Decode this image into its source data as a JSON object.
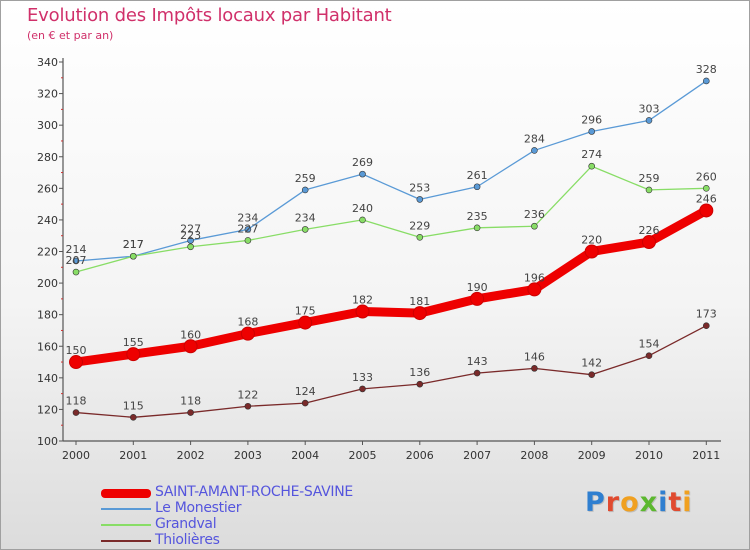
{
  "title": "Evolution des Impôts locaux par Habitant",
  "subtitle": "(en € et par an)",
  "logo": {
    "text": "Proxiti"
  },
  "colors": {
    "title": "#d0306a",
    "axis": "#555555",
    "legend_text": "#5555dd"
  },
  "chart_data": {
    "type": "line",
    "title": "Evolution des Impôts locaux par Habitant",
    "subtitle": "(en € et par an)",
    "x": [
      "2000",
      "2001",
      "2002",
      "2003",
      "2004",
      "2005",
      "2006",
      "2007",
      "2008",
      "2009",
      "2010",
      "2011"
    ],
    "ylim": [
      100,
      340
    ],
    "yticks": [
      100,
      120,
      140,
      160,
      180,
      200,
      220,
      240,
      260,
      280,
      300,
      320,
      340
    ],
    "grid": false,
    "legend_position": "bottom-left",
    "series": [
      {
        "name": "SAINT-AMANT-ROCHE-SAVINE",
        "color": "#ee0000",
        "width": 9,
        "values": [
          150,
          155,
          160,
          168,
          175,
          182,
          181,
          190,
          196,
          220,
          226,
          246
        ]
      },
      {
        "name": "Le Monestier",
        "color": "#5a9ad6",
        "width": 1.3,
        "values": [
          214,
          217,
          227,
          234,
          259,
          269,
          253,
          261,
          284,
          296,
          303,
          328
        ]
      },
      {
        "name": "Grandval",
        "color": "#88dd66",
        "width": 1.3,
        "values": [
          207,
          217,
          223,
          227,
          234,
          240,
          229,
          235,
          236,
          274,
          259,
          260
        ]
      },
      {
        "name": "Thiolières",
        "color": "#7a2a2a",
        "width": 1.3,
        "values": [
          118,
          115,
          118,
          122,
          124,
          133,
          136,
          143,
          146,
          142,
          154,
          173
        ]
      }
    ]
  }
}
